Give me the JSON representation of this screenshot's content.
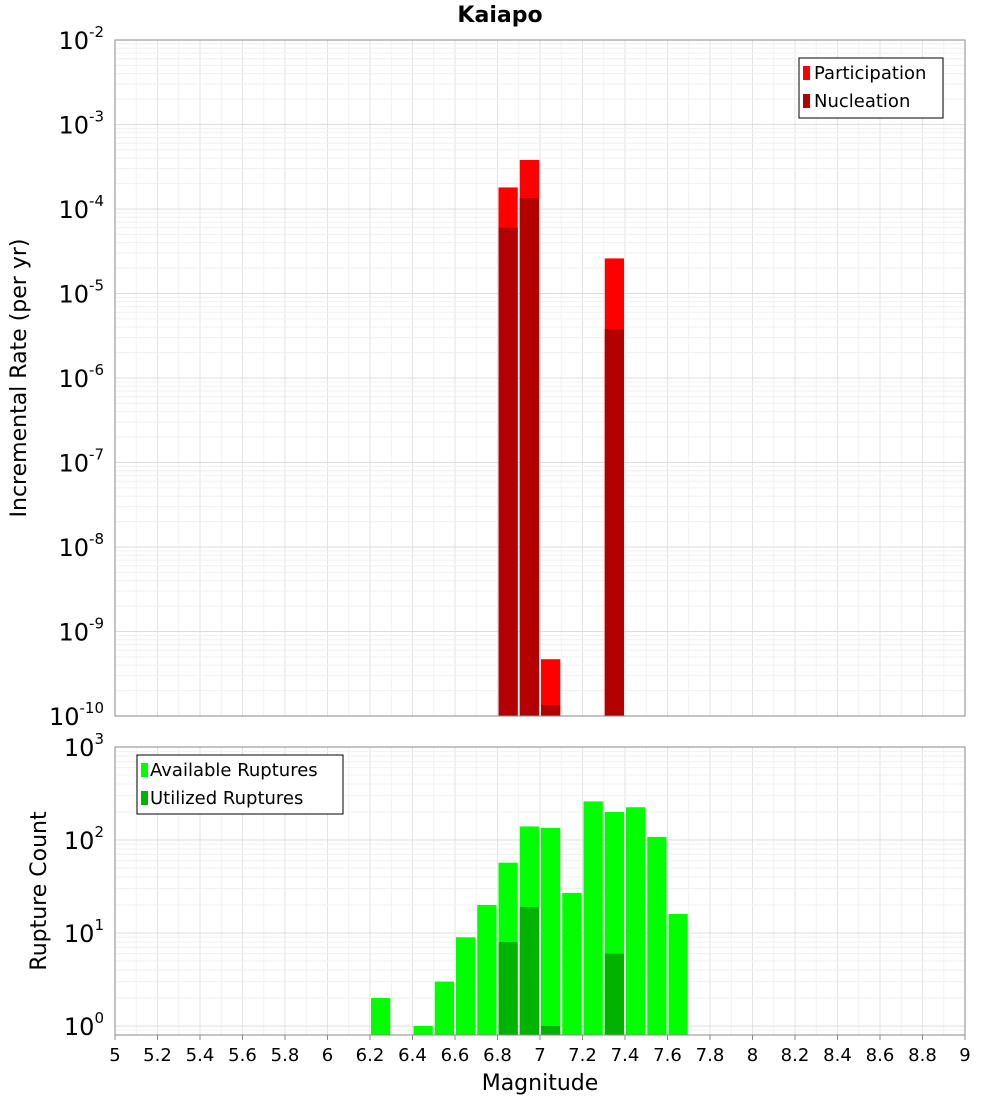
{
  "title": "Kaiapo",
  "x_axis": {
    "label": "Magnitude",
    "ticks": [
      "5",
      "5.2",
      "5.4",
      "5.6",
      "5.8",
      "6",
      "6.2",
      "6.4",
      "6.6",
      "6.8",
      "7",
      "7.2",
      "7.4",
      "7.6",
      "7.8",
      "8",
      "8.2",
      "8.4",
      "8.6",
      "8.8",
      "9"
    ]
  },
  "top_panel": {
    "ylabel": "Incremental Rate (per yr)",
    "tick_bases": [
      "10",
      "10",
      "10",
      "10",
      "10",
      "10",
      "10",
      "10",
      "10"
    ],
    "tick_exponents": [
      "-2",
      "-3",
      "-4",
      "-5",
      "-6",
      "-7",
      "-8",
      "-9",
      "-10"
    ],
    "legend": [
      "Participation",
      "Nucleation"
    ]
  },
  "bottom_panel": {
    "ylabel": "Rupture Count",
    "tick_bases": [
      "10",
      "10",
      "10",
      "10"
    ],
    "tick_exponents": [
      "3",
      "2",
      "1",
      "0"
    ],
    "legend": [
      "Available Ruptures",
      "Utilized Ruptures"
    ]
  },
  "chart_data": [
    {
      "type": "bar",
      "title": "Kaiapo",
      "xlabel": "Magnitude",
      "ylabel": "Incremental Rate (per yr)",
      "xlim": [
        5,
        9
      ],
      "ylim": [
        1e-10,
        0.01
      ],
      "yscale": "log",
      "grid": true,
      "legend_position": "top-right",
      "bin_width": 0.1,
      "series": [
        {
          "name": "Participation",
          "color": "#ff0000",
          "x": [
            6.85,
            6.95,
            7.05,
            7.35
          ],
          "values": [
            0.00018,
            0.00038,
            4.7e-10,
            2.6e-05
          ]
        },
        {
          "name": "Nucleation",
          "color": "#b30000",
          "x": [
            6.85,
            6.95,
            7.05,
            7.35
          ],
          "values": [
            6e-05,
            0.000135,
            1.35e-10,
            3.8e-06
          ]
        }
      ]
    },
    {
      "type": "bar",
      "xlabel": "Magnitude",
      "ylabel": "Rupture Count",
      "xlim": [
        5,
        9
      ],
      "ylim": [
        0.8,
        1000
      ],
      "yscale": "log",
      "grid": true,
      "legend_position": "top-left",
      "bin_width": 0.1,
      "series": [
        {
          "name": "Available Ruptures",
          "color": "#00ff00",
          "x": [
            6.25,
            6.45,
            6.55,
            6.65,
            6.75,
            6.85,
            6.95,
            7.05,
            7.15,
            7.25,
            7.35,
            7.45,
            7.55,
            7.65
          ],
          "values": [
            2,
            1,
            3,
            9,
            20,
            57,
            140,
            135,
            27,
            260,
            200,
            225,
            108,
            16
          ]
        },
        {
          "name": "Utilized Ruptures",
          "color": "#00b300",
          "x": [
            6.85,
            6.95,
            7.05,
            7.35
          ],
          "values": [
            8,
            19,
            1,
            6
          ]
        }
      ]
    }
  ]
}
